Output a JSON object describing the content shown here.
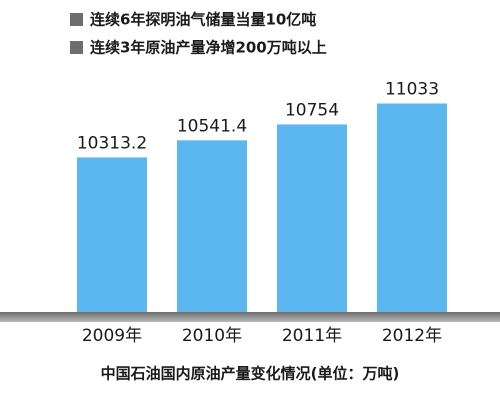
{
  "chart_data": {
    "type": "bar",
    "notes": [
      "连续6年探明油气储量当量10亿吨",
      "连续3年原油产量净增200万吨以上"
    ],
    "title": "中国石油国内原油产量变化情况(单位：万吨)",
    "categories": [
      "2009年",
      "2010年",
      "2011年",
      "2012年"
    ],
    "values": [
      10313.2,
      10541.4,
      10754,
      11033
    ],
    "color": "#5cb6f0",
    "ylim": [
      8250,
      11400
    ]
  }
}
